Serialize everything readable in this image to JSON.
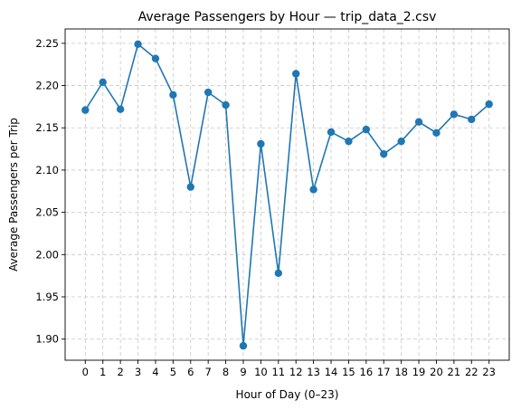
{
  "chart_data": {
    "type": "line",
    "title": "Average Passengers by Hour — trip_data_2.csv",
    "xlabel": "Hour of Day (0–23)",
    "ylabel": "Average Passengers per Trip",
    "x": [
      0,
      1,
      2,
      3,
      4,
      5,
      6,
      7,
      8,
      9,
      10,
      11,
      12,
      13,
      14,
      15,
      16,
      17,
      18,
      19,
      20,
      21,
      22,
      23
    ],
    "xticks": [
      "0",
      "1",
      "2",
      "3",
      "4",
      "5",
      "6",
      "7",
      "8",
      "9",
      "10",
      "11",
      "12",
      "13",
      "14",
      "15",
      "16",
      "17",
      "18",
      "19",
      "20",
      "21",
      "22",
      "23"
    ],
    "values": [
      2.171,
      2.204,
      2.172,
      2.249,
      2.232,
      2.189,
      2.08,
      2.192,
      2.177,
      1.892,
      2.131,
      1.978,
      2.214,
      2.077,
      2.145,
      2.134,
      2.148,
      2.119,
      2.134,
      2.157,
      2.144,
      2.166,
      2.16,
      2.178
    ],
    "ylim": [
      1.875,
      2.267
    ],
    "yticks": [
      "1.90",
      "1.95",
      "2.00",
      "2.05",
      "2.10",
      "2.15",
      "2.20",
      "2.25"
    ],
    "grid": true,
    "color": "#1f77b4",
    "marker": "circle"
  }
}
